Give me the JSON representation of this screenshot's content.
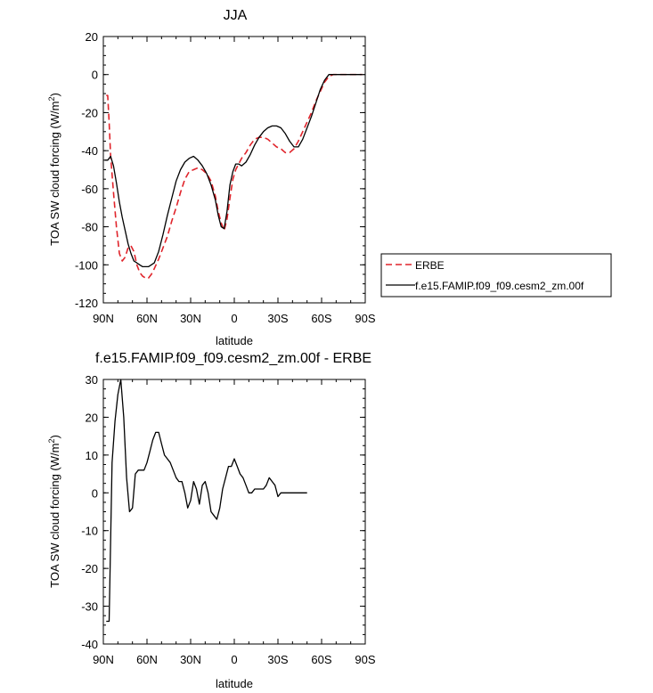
{
  "chart_data": [
    {
      "type": "line",
      "title": "JJA",
      "xlabel": "latitude",
      "ylabel": "TOA SW cloud forcing (W/m²)",
      "ylim": [
        -120,
        20
      ],
      "yticks": [
        20,
        0,
        -20,
        -40,
        -60,
        -80,
        -100,
        -120
      ],
      "xlim": [
        90,
        -90
      ],
      "xticks": [
        {
          "value": 90,
          "label": "90N"
        },
        {
          "value": 60,
          "label": "60N"
        },
        {
          "value": 30,
          "label": "30N"
        },
        {
          "value": 0,
          "label": "0"
        },
        {
          "value": -30,
          "label": "30S"
        },
        {
          "value": -60,
          "label": "60S"
        },
        {
          "value": -90,
          "label": "90S"
        }
      ],
      "legend_position": "right",
      "series": [
        {
          "name": "ERBE",
          "color": "#e0242b",
          "dash": "dashed",
          "points": [
            [
              88,
              -11
            ],
            [
              87,
              -11
            ],
            [
              86,
              -25
            ],
            [
              85,
              -43
            ],
            [
              83,
              -62
            ],
            [
              81,
              -80
            ],
            [
              79,
              -94
            ],
            [
              77,
              -98
            ],
            [
              75,
              -96
            ],
            [
              73,
              -91
            ],
            [
              71,
              -90
            ],
            [
              69,
              -93
            ],
            [
              67,
              -100
            ],
            [
              65,
              -104
            ],
            [
              63,
              -106
            ],
            [
              61,
              -107
            ],
            [
              59,
              -107
            ],
            [
              57,
              -105
            ],
            [
              55,
              -102
            ],
            [
              52,
              -97
            ],
            [
              49,
              -91
            ],
            [
              46,
              -85
            ],
            [
              43,
              -77
            ],
            [
              40,
              -70
            ],
            [
              37,
              -62
            ],
            [
              34,
              -55
            ],
            [
              31,
              -51
            ],
            [
              28,
              -50
            ],
            [
              25,
              -49
            ],
            [
              22,
              -50
            ],
            [
              19,
              -52
            ],
            [
              16,
              -56
            ],
            [
              13,
              -64
            ],
            [
              11,
              -72
            ],
            [
              9,
              -78
            ],
            [
              7,
              -82
            ],
            [
              5,
              -76
            ],
            [
              3,
              -65
            ],
            [
              1,
              -55
            ],
            [
              -1,
              -50
            ],
            [
              -3,
              -47
            ],
            [
              -5,
              -44
            ],
            [
              -8,
              -41
            ],
            [
              -11,
              -37
            ],
            [
              -14,
              -34
            ],
            [
              -17,
              -33
            ],
            [
              -20,
              -33
            ],
            [
              -23,
              -34
            ],
            [
              -26,
              -36
            ],
            [
              -29,
              -38
            ],
            [
              -32,
              -39
            ],
            [
              -35,
              -41
            ],
            [
              -38,
              -41
            ],
            [
              -41,
              -39
            ],
            [
              -44,
              -35
            ],
            [
              -47,
              -30
            ],
            [
              -50,
              -25
            ],
            [
              -53,
              -20
            ],
            [
              -56,
              -14
            ],
            [
              -59,
              -9
            ],
            [
              -62,
              -4
            ],
            [
              -65,
              -1
            ],
            [
              -68,
              0
            ],
            [
              -72,
              0
            ],
            [
              -76,
              0
            ],
            [
              -80,
              0
            ],
            [
              -84,
              0
            ],
            [
              -88,
              0
            ]
          ]
        },
        {
          "name": "f.e15.FAMIP.f09_f09.cesm2_zm.00f",
          "color": "#000000",
          "dash": "solid",
          "points": [
            [
              89,
              -45
            ],
            [
              87,
              -45
            ],
            [
              85,
              -43
            ],
            [
              83,
              -48
            ],
            [
              81,
              -57
            ],
            [
              79,
              -67
            ],
            [
              77,
              -75
            ],
            [
              75,
              -82
            ],
            [
              73,
              -89
            ],
            [
              71,
              -94
            ],
            [
              69,
              -98
            ],
            [
              67,
              -99
            ],
            [
              65,
              -100
            ],
            [
              63,
              -101
            ],
            [
              61,
              -101
            ],
            [
              59,
              -101
            ],
            [
              57,
              -100
            ],
            [
              55,
              -99
            ],
            [
              52,
              -93
            ],
            [
              49,
              -84
            ],
            [
              46,
              -74
            ],
            [
              43,
              -65
            ],
            [
              40,
              -56
            ],
            [
              37,
              -50
            ],
            [
              34,
              -46
            ],
            [
              31,
              -44
            ],
            [
              28,
              -43
            ],
            [
              25,
              -45
            ],
            [
              22,
              -48
            ],
            [
              19,
              -52
            ],
            [
              16,
              -58
            ],
            [
              13,
              -66
            ],
            [
              11,
              -74
            ],
            [
              9,
              -80
            ],
            [
              7,
              -81
            ],
            [
              5,
              -72
            ],
            [
              3,
              -58
            ],
            [
              1,
              -51
            ],
            [
              -1,
              -47
            ],
            [
              -3,
              -47
            ],
            [
              -5,
              -48
            ],
            [
              -8,
              -46
            ],
            [
              -11,
              -42
            ],
            [
              -14,
              -37
            ],
            [
              -17,
              -33
            ],
            [
              -20,
              -30
            ],
            [
              -23,
              -28
            ],
            [
              -26,
              -27
            ],
            [
              -29,
              -27
            ],
            [
              -32,
              -28
            ],
            [
              -35,
              -31
            ],
            [
              -38,
              -35
            ],
            [
              -41,
              -38
            ],
            [
              -44,
              -38
            ],
            [
              -47,
              -34
            ],
            [
              -50,
              -28
            ],
            [
              -53,
              -22
            ],
            [
              -56,
              -15
            ],
            [
              -59,
              -8
            ],
            [
              -62,
              -3
            ],
            [
              -65,
              0
            ],
            [
              -68,
              0
            ],
            [
              -72,
              0
            ],
            [
              -76,
              0
            ],
            [
              -80,
              0
            ],
            [
              -84,
              0
            ],
            [
              -88,
              0
            ]
          ]
        }
      ]
    },
    {
      "type": "line",
      "title": "f.e15.FAMIP.f09_f09.cesm2_zm.00f - ERBE",
      "xlabel": "latitude",
      "ylabel": "TOA SW cloud forcing (W/m²)",
      "ylim": [
        -40,
        30
      ],
      "yticks": [
        30,
        20,
        10,
        0,
        -10,
        -20,
        -30,
        -40
      ],
      "xlim": [
        90,
        -90
      ],
      "xticks": [
        {
          "value": 90,
          "label": "90N"
        },
        {
          "value": 60,
          "label": "60N"
        },
        {
          "value": 30,
          "label": "30N"
        },
        {
          "value": 0,
          "label": "0"
        },
        {
          "value": -30,
          "label": "30S"
        },
        {
          "value": -60,
          "label": "60S"
        },
        {
          "value": -90,
          "label": "90S"
        }
      ],
      "series": [
        {
          "color": "#000000",
          "dash": "solid",
          "points": [
            [
              88,
              -34
            ],
            [
              86,
              -34
            ],
            [
              84,
              8
            ],
            [
              82,
              19
            ],
            [
              80,
              26
            ],
            [
              78,
              30
            ],
            [
              76,
              20
            ],
            [
              74,
              4
            ],
            [
              72,
              -5
            ],
            [
              70,
              -4
            ],
            [
              68,
              5
            ],
            [
              66,
              6
            ],
            [
              64,
              6
            ],
            [
              62,
              6
            ],
            [
              60,
              8
            ],
            [
              58,
              11
            ],
            [
              56,
              14
            ],
            [
              54,
              16
            ],
            [
              52,
              16
            ],
            [
              50,
              13
            ],
            [
              48,
              10
            ],
            [
              46,
              9
            ],
            [
              44,
              8
            ],
            [
              42,
              6
            ],
            [
              40,
              4
            ],
            [
              38,
              3
            ],
            [
              36,
              3
            ],
            [
              34,
              0
            ],
            [
              32,
              -4
            ],
            [
              30,
              -2
            ],
            [
              28,
              3
            ],
            [
              26,
              1
            ],
            [
              24,
              -3
            ],
            [
              22,
              2
            ],
            [
              20,
              3
            ],
            [
              18,
              0
            ],
            [
              16,
              -5
            ],
            [
              14,
              -6
            ],
            [
              12,
              -7
            ],
            [
              10,
              -4
            ],
            [
              8,
              1
            ],
            [
              6,
              4
            ],
            [
              4,
              7
            ],
            [
              2,
              7
            ],
            [
              0,
              9
            ],
            [
              -2,
              7
            ],
            [
              -4,
              5
            ],
            [
              -6,
              4
            ],
            [
              -8,
              2
            ],
            [
              -10,
              0
            ],
            [
              -12,
              0
            ],
            [
              -14,
              1
            ],
            [
              -16,
              1
            ],
            [
              -18,
              1
            ],
            [
              -20,
              1
            ],
            [
              -22,
              2
            ],
            [
              -24,
              4
            ],
            [
              -26,
              3
            ],
            [
              -28,
              2
            ],
            [
              -30,
              -1
            ],
            [
              -32,
              0
            ],
            [
              -34,
              0
            ],
            [
              -36,
              0
            ],
            [
              -38,
              0
            ],
            [
              -40,
              0
            ],
            [
              -42,
              0
            ],
            [
              -44,
              0
            ],
            [
              -46,
              0
            ],
            [
              -48,
              0
            ],
            [
              -50,
              0
            ]
          ]
        }
      ]
    }
  ]
}
